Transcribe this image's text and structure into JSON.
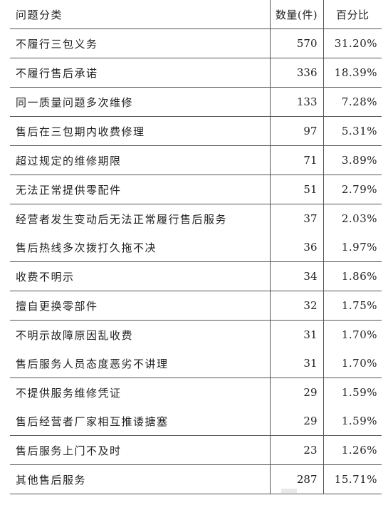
{
  "header": {
    "category": "问题分类",
    "count": "数量(件)",
    "percent": "百分比"
  },
  "rows": [
    {
      "name": "不履行三包义务",
      "count": "570",
      "percent": "31.20%",
      "ruled": true
    },
    {
      "name": "不履行售后承诺",
      "count": "336",
      "percent": "18.39%",
      "ruled": true
    },
    {
      "name": "同一质量问题多次维修",
      "count": "133",
      "percent": "7.28%",
      "ruled": true
    },
    {
      "name": "售后在三包期内收费修理",
      "count": "97",
      "percent": "5.31%",
      "ruled": true
    },
    {
      "name": "超过规定的维修期限",
      "count": "71",
      "percent": "3.89%",
      "ruled": true
    },
    {
      "name": "无法正常提供零配件",
      "count": "51",
      "percent": "2.79%",
      "ruled": true
    },
    {
      "name": "经营者发生变动后无法正常履行售后服务",
      "count": "37",
      "percent": "2.03%",
      "ruled": true
    },
    {
      "name": "售后热线多次拨打久拖不决",
      "count": "36",
      "percent": "1.97%",
      "ruled": false
    },
    {
      "name": "收费不明示",
      "count": "34",
      "percent": "1.86%",
      "ruled": true
    },
    {
      "name": "擅自更换零部件",
      "count": "32",
      "percent": "1.75%",
      "ruled": true
    },
    {
      "name": "不明示故障原因乱收费",
      "count": "31",
      "percent": "1.70%",
      "ruled": true
    },
    {
      "name": "售后服务人员态度恶劣不讲理",
      "count": "31",
      "percent": "1.70%",
      "ruled": false
    },
    {
      "name": "不提供服务维修凭证",
      "count": "29",
      "percent": "1.59%",
      "ruled": true
    },
    {
      "name": "售后经营者厂家相互推诿搪塞",
      "count": "29",
      "percent": "1.59%",
      "ruled": false
    },
    {
      "name": "售后服务上门不及时",
      "count": "23",
      "percent": "1.26%",
      "ruled": true
    },
    {
      "name": "其他售后服务",
      "count": "287",
      "percent": "15.71%",
      "ruled": true
    }
  ]
}
